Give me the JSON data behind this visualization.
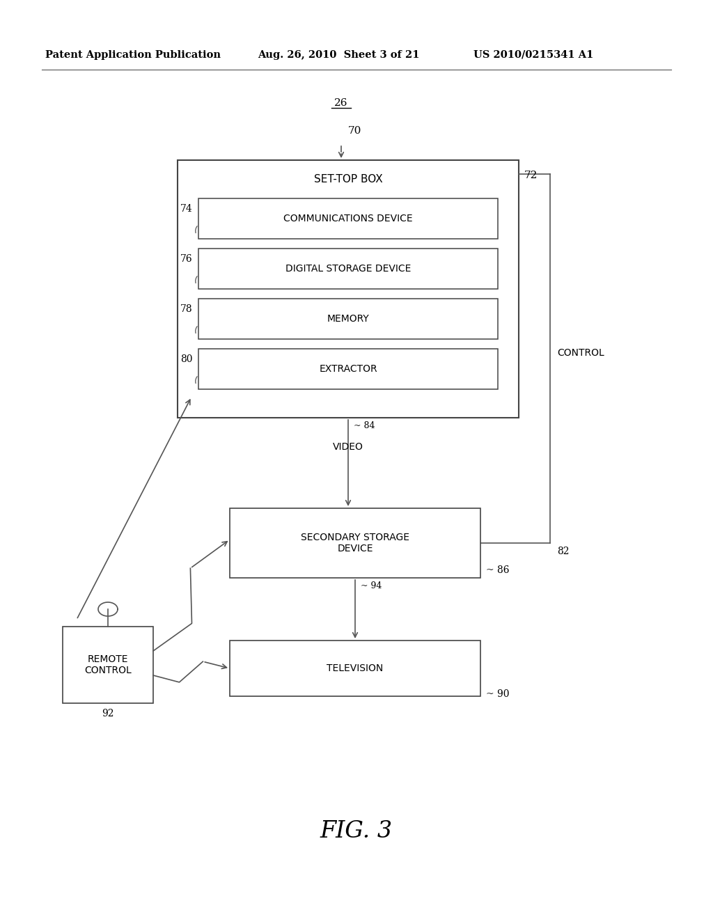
{
  "background_color": "#ffffff",
  "header_left": "Patent Application Publication",
  "header_mid": "Aug. 26, 2010  Sheet 3 of 21",
  "header_right": "US 2010/0215341 A1",
  "header_fontsize": 10.5,
  "fig_label": "FIG. 3",
  "fig_label_fontsize": 24,
  "label_26": "26",
  "label_70": "70",
  "label_72": "72",
  "label_74": "74",
  "label_76": "76",
  "label_78": "78",
  "label_80": "80",
  "label_82": "82",
  "label_84": "84",
  "label_86": "86",
  "label_90": "90",
  "label_92": "92",
  "label_94": "94",
  "stb_title": "SET-TOP BOX",
  "comm_label": "COMMUNICATIONS DEVICE",
  "dsd_label": "DIGITAL STORAGE DEVICE",
  "mem_label": "MEMORY",
  "ext_label": "EXTRACTOR",
  "ssd_label": "SECONDARY STORAGE\nDEVICE",
  "tv_label": "TELEVISION",
  "rc_label": "REMOTE\nCONTROL",
  "video_label": "VIDEO",
  "control_label": "CONTROL",
  "text_color": "#000000"
}
